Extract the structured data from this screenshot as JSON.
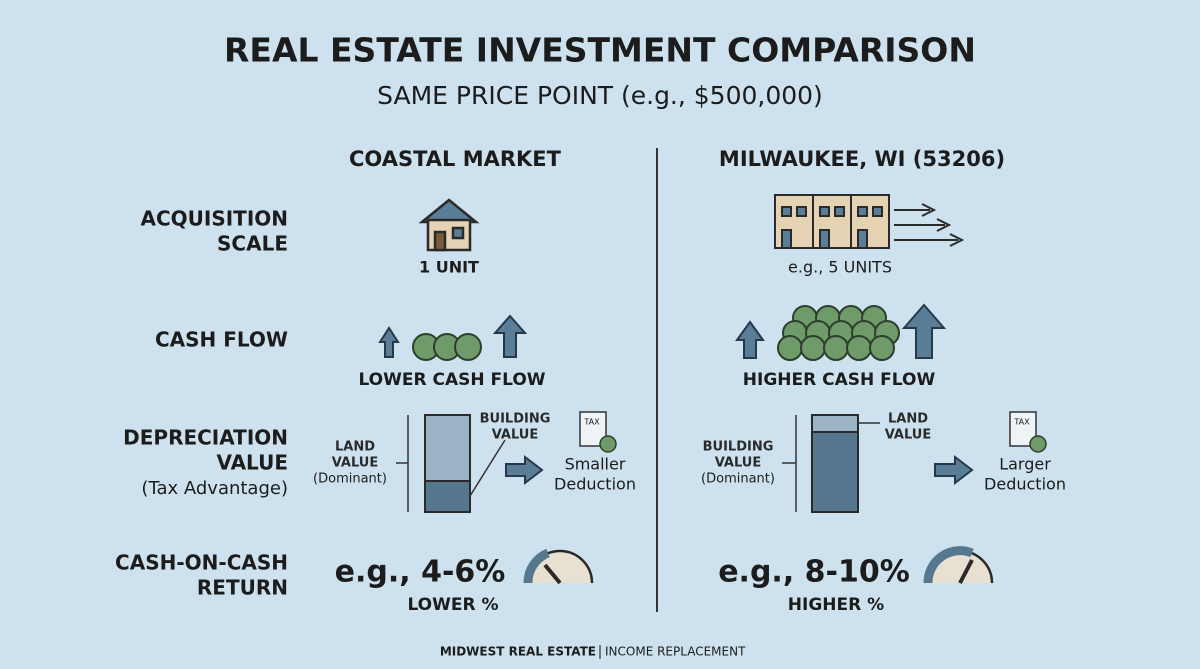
{
  "header": {
    "title": "REAL ESTATE INVESTMENT COMPARISON",
    "subtitle": "SAME PRICE POINT (e.g., $500,000)"
  },
  "rows": [
    {
      "label_lines": [
        "ACQUISITION",
        "SCALE"
      ]
    },
    {
      "label_lines": [
        "CASH FLOW"
      ]
    },
    {
      "label_lines": [
        "DEPRECIATION",
        "VALUE"
      ],
      "note": "(Tax Advantage)"
    },
    {
      "label_lines": [
        "CASH-ON-CASH",
        "RETURN"
      ]
    }
  ],
  "columns": [
    {
      "heading": "COASTAL MARKET",
      "scale": "1 UNIT",
      "cash_flow": "LOWER CASH FLOW",
      "depreciation": {
        "land_lines": [
          "LAND",
          "VALUE"
        ],
        "land_note": "(Dominant)",
        "building_lines": [
          "BUILDING",
          "VALUE"
        ],
        "tax_icon": "TAX",
        "result_lines": [
          "Smaller",
          "Deduction"
        ]
      },
      "return": {
        "value": "e.g., 4-6%",
        "label": "LOWER %"
      }
    },
    {
      "heading": "MILWAUKEE, WI (53206)",
      "scale": "e.g., 5 UNITS",
      "cash_flow": "HIGHER CASH FLOW",
      "depreciation": {
        "land_lines": [
          "LAND",
          "VALUE"
        ],
        "building_lines": [
          "BUILDING",
          "VALUE"
        ],
        "building_note": "(Dominant)",
        "tax_icon": "TAX",
        "result_lines": [
          "Larger",
          "Deduction"
        ]
      },
      "return": {
        "value": "e.g., 8-10%",
        "label": "HIGHER %"
      }
    }
  ],
  "footer": {
    "brand": "MIDWEST REAL ESTATE",
    "tagline": "INCOME REPLACEMENT"
  }
}
